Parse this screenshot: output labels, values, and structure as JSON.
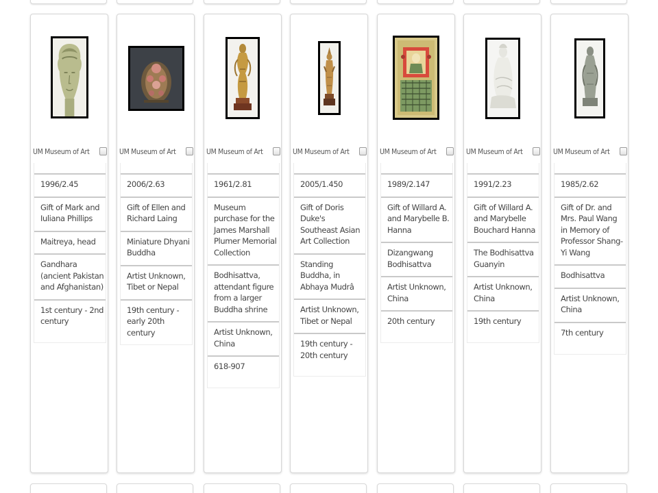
{
  "source_checkbox": {
    "source_label": "UM Museum of Art"
  },
  "items": [
    {
      "accession": "1996/2.45",
      "credit": "Gift of Mark and Iuliana Phillips",
      "title": "Maitreya, head",
      "artist": "Gandhara (ancient Pakistan and Afghanistan)",
      "date": "1st century - 2nd century",
      "image_subject": "stone head"
    },
    {
      "accession": "2006/2.63",
      "credit": "Gift of Ellen and Richard Laing",
      "title": "Miniature Dhyani Buddha",
      "artist": "Artist Unknown, Tibet or Nepal",
      "date": "19th century - early 20th century",
      "image_subject": "jeweled miniature"
    },
    {
      "accession": "1961/2.81",
      "credit": "Museum purchase for the James Marshall Plumer Memorial Collection",
      "title": "Bodhisattva, attendant figure from a larger Buddha shrine",
      "artist": "Artist Unknown, China",
      "date": "618-907",
      "image_subject": "gilt bronze figure"
    },
    {
      "accession": "2005/1.450",
      "credit": "Gift of Doris Duke's Southeast Asian Art Collection",
      "title": "Standing Buddha, in Abhaya Mudrâ",
      "artist": "Artist Unknown, Tibet or Nepal",
      "date": "19th century - 20th century",
      "image_subject": "standing figure"
    },
    {
      "accession": "1989/2.147",
      "credit": "Gift of Willard A. and Marybelle B. Hanna",
      "title": "Dizangwang Bodhisattva",
      "artist": "Artist Unknown, China",
      "date": "20th century",
      "image_subject": "painting"
    },
    {
      "accession": "1991/2.23",
      "credit": "Gift of Willard A. and Marybelle Bouchard Hanna",
      "title": "The Bodhisattva Guanyin",
      "artist": "Artist Unknown, China",
      "date": "19th century",
      "image_subject": "white porcelain figure"
    },
    {
      "accession": "1985/2.62",
      "credit": "Gift of Dr. and Mrs. Paul Wang in Memory of Professor Shang-Yi Wang",
      "title": "Bodhisattva",
      "artist": "Artist Unknown, China",
      "date": "7th century",
      "image_subject": "stone figure"
    }
  ],
  "colors": {
    "card_border": "#d6d6d6",
    "field_divider": "#c9c9c9",
    "text": "#444444",
    "thumb_frame": "#000000"
  }
}
